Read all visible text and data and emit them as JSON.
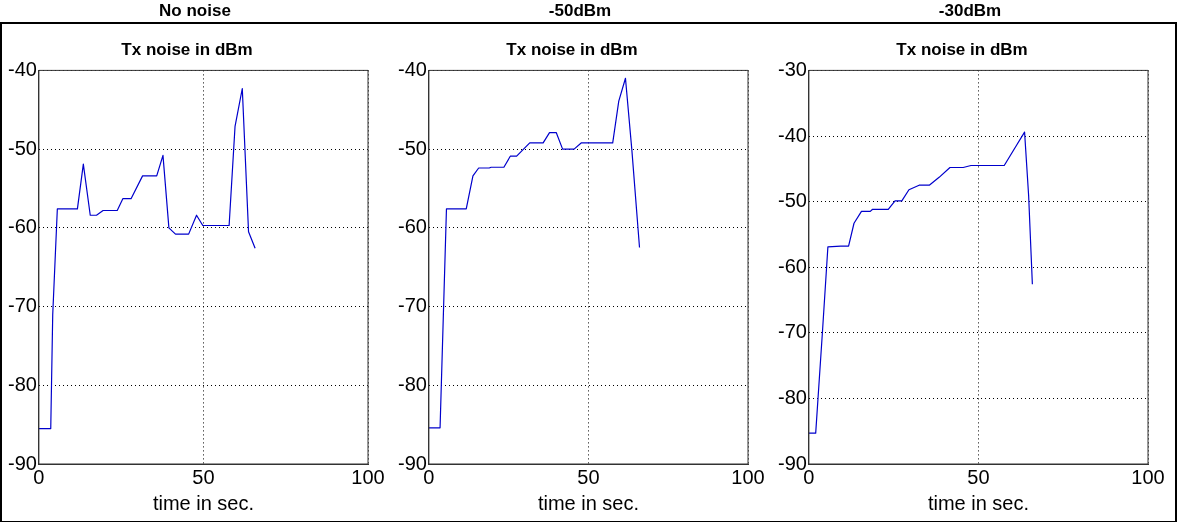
{
  "chart_data": [
    {
      "type": "line",
      "title": "No noise",
      "subtitle": "Tx noise in dBm",
      "xlabel": "time in sec.",
      "xlim": [
        0,
        100
      ],
      "xticks": [
        0,
        50,
        100
      ],
      "ylim": [
        -90,
        -40
      ],
      "yticks": [
        -90,
        -80,
        -70,
        -60,
        -50,
        -40
      ],
      "grid": true,
      "legend": false,
      "marker": "none",
      "line_style": "solid",
      "series": [
        {
          "color": "#0000cc",
          "x": [
            0,
            3.6,
            4.2,
            5.6,
            11.7,
            13.5,
            15.6,
            17.5,
            19.5,
            23.8,
            25.5,
            28,
            31.5,
            35.8,
            37.7,
            39.5,
            41.5,
            45.5,
            47.9,
            49.8,
            57.8,
            59.6,
            61.8,
            63.7,
            65.7
          ],
          "values": [
            -85.5,
            -85.5,
            -71,
            -57.6,
            -57.6,
            -51.9,
            -58.4,
            -58.4,
            -57.8,
            -57.8,
            -56.3,
            -56.3,
            -53.4,
            -53.4,
            -50.8,
            -60,
            -60.8,
            -60.8,
            -58.4,
            -59.7,
            -59.7,
            -47.1,
            -42.3,
            -60.5,
            -62.6
          ]
        }
      ]
    },
    {
      "type": "line",
      "title": "-50dBm",
      "subtitle": "Tx noise in dBm",
      "xlabel": "time in sec.",
      "xlim": [
        0,
        100
      ],
      "xticks": [
        0,
        50,
        100
      ],
      "ylim": [
        -90,
        -40
      ],
      "yticks": [
        -90,
        -80,
        -70,
        -60,
        -50,
        -40
      ],
      "grid": true,
      "legend": false,
      "marker": "none",
      "line_style": "solid",
      "series": [
        {
          "color": "#0000cc",
          "x": [
            0,
            3.5,
            5.5,
            11.7,
            13.8,
            15.6,
            18.9,
            19.5,
            23.5,
            25.5,
            27.5,
            31.6,
            35.8,
            37.8,
            39.9,
            41.9,
            45.5,
            47.8,
            57.6,
            59.5,
            61.6,
            63.6,
            66
          ],
          "values": [
            -85.4,
            -85.4,
            -57.6,
            -57.6,
            -53.4,
            -52.4,
            -52.4,
            -52.3,
            -52.3,
            -50.9,
            -50.9,
            -49.2,
            -49.2,
            -47.9,
            -47.9,
            -50,
            -50,
            -49.2,
            -49.2,
            -43.9,
            -41,
            -50.1,
            -62.5
          ]
        }
      ]
    },
    {
      "type": "line",
      "title": "-30dBm",
      "subtitle": "Tx noise in dBm",
      "xlabel": "time in sec.",
      "xlim": [
        0,
        100
      ],
      "xticks": [
        0,
        50,
        100
      ],
      "ylim": [
        -90,
        -30
      ],
      "yticks": [
        -90,
        -80,
        -70,
        -60,
        -50,
        -40,
        -30
      ],
      "grid": true,
      "legend": false,
      "marker": "none",
      "line_style": "solid",
      "series": [
        {
          "color": "#0000cc",
          "x": [
            0,
            2,
            4,
            5.6,
            9.4,
            11.7,
            13.3,
            15.5,
            18.1,
            18.7,
            23.4,
            25.4,
            27.4,
            29.5,
            32.5,
            35.5,
            38.4,
            41.6,
            45.5,
            47.8,
            57.6,
            63.6,
            64.8,
            65.9
          ],
          "values": [
            -85.3,
            -85.3,
            -69.8,
            -56.9,
            -56.8,
            -56.8,
            -53.3,
            -51.5,
            -51.5,
            -51.2,
            -51.2,
            -49.9,
            -49.9,
            -48.2,
            -47.5,
            -47.5,
            -46.3,
            -44.8,
            -44.8,
            -44.5,
            -44.5,
            -39.4,
            -49.1,
            -62.6
          ]
        }
      ]
    }
  ]
}
